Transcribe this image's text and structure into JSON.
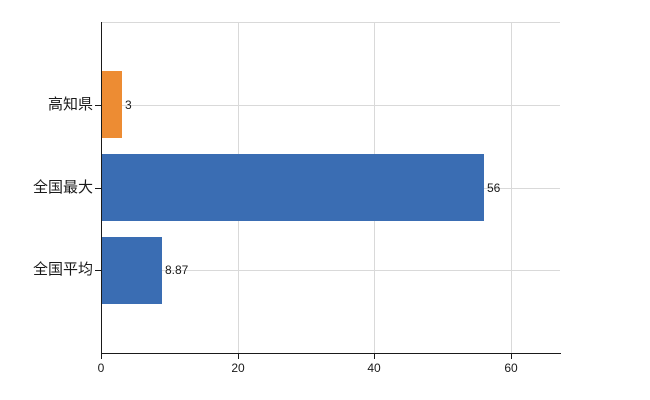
{
  "chart_data": {
    "type": "bar",
    "orientation": "horizontal",
    "title": "",
    "xlabel": "",
    "ylabel": "",
    "categories": [
      "高知県",
      "全国最大",
      "全国平均"
    ],
    "values": [
      3,
      56,
      8.87
    ],
    "value_labels": [
      "3",
      "56",
      "8.87"
    ],
    "bar_colors": [
      "#ED8C33",
      "#3A6DB3",
      "#3A6DB3"
    ],
    "xlim": [
      0,
      67
    ],
    "xticks": [
      0,
      20,
      40,
      60
    ],
    "xtick_labels": [
      "0",
      "20",
      "40",
      "60"
    ],
    "grid": true,
    "legend": false,
    "colors": {
      "background": "#ffffff",
      "gridline": "#d9d9d9",
      "axis": "#1a1a1a",
      "text": "#1a1a1a"
    }
  }
}
